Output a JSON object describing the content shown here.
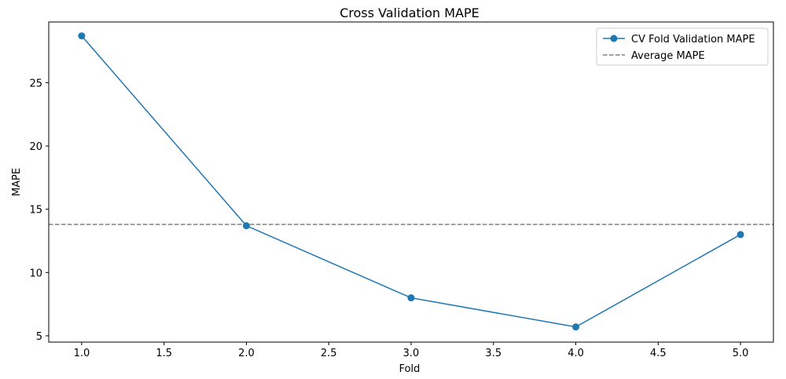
{
  "chart_data": {
    "type": "line",
    "title": "Cross Validation MAPE",
    "xlabel": "Fold",
    "ylabel": "MAPE",
    "xlim": [
      0.8,
      5.2
    ],
    "ylim": [
      4.5,
      29.8
    ],
    "xticks": [
      1.0,
      1.5,
      2.0,
      2.5,
      3.0,
      3.5,
      4.0,
      4.5,
      5.0
    ],
    "xtick_labels": [
      "1.0",
      "1.5",
      "2.0",
      "2.5",
      "3.0",
      "3.5",
      "4.0",
      "4.5",
      "5.0"
    ],
    "yticks": [
      5,
      10,
      15,
      20,
      25
    ],
    "ytick_labels": [
      "5",
      "10",
      "15",
      "20",
      "25"
    ],
    "grid": false,
    "legend_position": "top-right",
    "series": [
      {
        "name": "CV Fold Validation MAPE",
        "x": [
          1,
          2,
          3,
          4,
          5
        ],
        "values": [
          28.7,
          13.7,
          8.0,
          5.7,
          13.0
        ],
        "color": "#1f77b4",
        "marker": "circle",
        "linestyle": "solid"
      }
    ],
    "reference_lines": [
      {
        "name": "Average MAPE",
        "orientation": "horizontal",
        "y": 13.8,
        "color": "#808080",
        "linestyle": "dashed"
      }
    ]
  }
}
